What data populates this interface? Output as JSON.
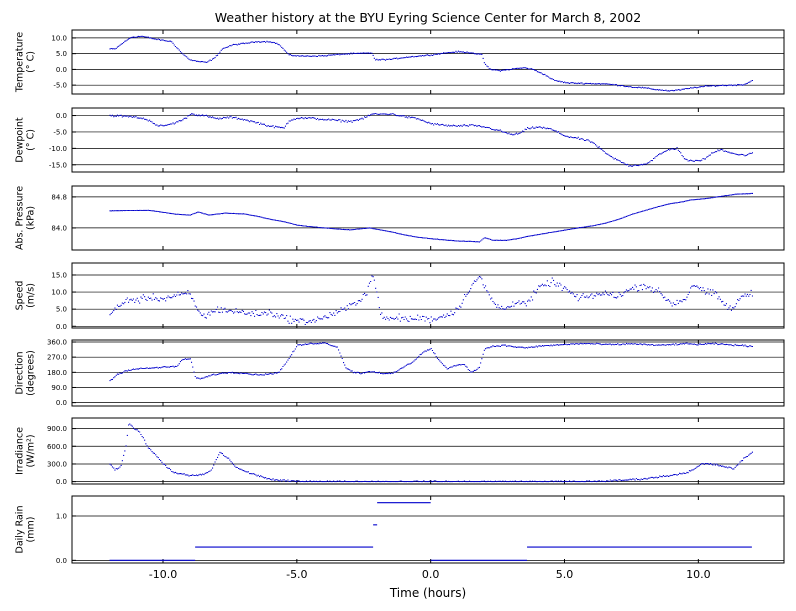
{
  "chart_data": {
    "type": "scatter",
    "title": "Weather history at the BYU Eyring Science Center for March 8, 2002",
    "xlabel": "Time (hours)",
    "xlim": [
      -13.4,
      13.2
    ],
    "x_ticks": [
      -10,
      -5,
      0,
      5,
      10
    ],
    "x_tick_labels": [
      "-10.0",
      "-5.0",
      "0.0",
      "5.0",
      "10.0"
    ],
    "series_color": "#0000cc",
    "panels": [
      {
        "id": "temperature",
        "ylabel": [
          "Temperature",
          "(° C)"
        ],
        "ylim": [
          -7.8,
          12.5
        ],
        "yticks": [
          10,
          5,
          0,
          -5
        ],
        "ytick_labels": [
          "10.0",
          "5.0",
          "0.0",
          "-5.0"
        ],
        "noise": 0.3,
        "x": [
          -12,
          -11.8,
          -11.5,
          -11.2,
          -10.8,
          -10.3,
          -9.7,
          -9.3,
          -9.0,
          -8.7,
          -8.4,
          -8.1,
          -7.8,
          -7.4,
          -7.0,
          -6.5,
          -6.0,
          -5.7,
          -5.3,
          -4.8,
          -4.0,
          -3.4,
          -2.9,
          -2.2,
          -2.1,
          -1.5,
          -1.0,
          -0.5,
          0.0,
          0.5,
          1.0,
          1.5,
          1.9,
          2.0,
          2.2,
          2.6,
          3.2,
          3.5,
          3.8,
          4.2,
          4.6,
          5.1,
          5.6,
          6.0,
          6.5,
          7.0,
          7.5,
          8.0,
          8.4,
          8.9,
          9.3,
          9.8,
          10.3,
          10.8,
          11.3,
          11.7,
          12.0
        ],
        "y": [
          6.5,
          6.5,
          8.5,
          10.2,
          10.5,
          9.6,
          8.8,
          5.0,
          3.0,
          2.5,
          2.2,
          3.5,
          6.5,
          7.8,
          8.2,
          8.8,
          8.8,
          8.0,
          4.5,
          4.2,
          4.3,
          4.8,
          5.0,
          5.2,
          3.0,
          3.2,
          3.8,
          4.2,
          4.6,
          5.2,
          5.6,
          5.3,
          4.6,
          1.8,
          0.0,
          -0.4,
          0.3,
          0.5,
          0.0,
          -1.5,
          -3.5,
          -4.3,
          -4.4,
          -4.5,
          -4.6,
          -5.0,
          -5.6,
          -5.9,
          -6.4,
          -6.8,
          -6.5,
          -5.8,
          -5.3,
          -5.1,
          -5.0,
          -4.8,
          -3.5
        ]
      },
      {
        "id": "dewpoint",
        "ylabel": [
          "Dewpoint",
          "(° C)"
        ],
        "ylim": [
          -17.2,
          2.3
        ],
        "yticks": [
          0,
          -5,
          -10,
          -15
        ],
        "ytick_labels": [
          "0.0",
          "-5.0",
          "-10.0",
          "-15.0"
        ],
        "noise": 0.5,
        "x": [
          -12,
          -11.5,
          -11,
          -10.5,
          -10.2,
          -9.8,
          -9.5,
          -9.2,
          -9.0,
          -8.5,
          -8.0,
          -7.5,
          -7.0,
          -6.5,
          -6.0,
          -5.5,
          -5.3,
          -5.0,
          -4.5,
          -4.0,
          -3.5,
          -3.0,
          -2.5,
          -2.2,
          -2.0,
          -1.5,
          -1.0,
          -0.5,
          0.0,
          0.5,
          1.0,
          1.5,
          2.0,
          2.5,
          3.0,
          3.3,
          3.6,
          4.0,
          4.5,
          5.0,
          5.5,
          6.0,
          6.3,
          6.6,
          7.0,
          7.4,
          7.8,
          8.1,
          8.5,
          8.9,
          9.2,
          9.5,
          9.8,
          10.2,
          10.5,
          10.8,
          11.2,
          11.5,
          11.8,
          12.0
        ],
        "y": [
          0.0,
          -0.2,
          -0.5,
          -1.5,
          -3.3,
          -2.8,
          -2.0,
          -1.0,
          0.5,
          0.0,
          -1.0,
          -0.5,
          -1.2,
          -2.2,
          -3.3,
          -3.8,
          -1.5,
          -0.8,
          -0.8,
          -1.2,
          -1.5,
          -1.8,
          -0.8,
          0.5,
          0.4,
          0.5,
          -0.3,
          -1.0,
          -2.5,
          -3.0,
          -3.2,
          -3.0,
          -3.5,
          -4.5,
          -5.8,
          -5.5,
          -4.0,
          -3.5,
          -4.2,
          -6.2,
          -7.0,
          -8.0,
          -10.0,
          -12.0,
          -13.8,
          -15.3,
          -15.0,
          -14.5,
          -12.0,
          -10.3,
          -10.0,
          -13.5,
          -14.0,
          -13.3,
          -11.5,
          -10.3,
          -11.3,
          -12.0,
          -12.0,
          -11.5
        ]
      },
      {
        "id": "pressure",
        "ylabel": [
          "Abs. Pressure",
          "(kPa)"
        ],
        "ylim": [
          83.43,
          85.08
        ],
        "yticks": [
          84.8,
          84.0
        ],
        "ytick_labels": [
          "84.8",
          "84.0"
        ],
        "noise": 0.006,
        "x": [
          -12,
          -11.2,
          -10.5,
          -10.0,
          -9.5,
          -9.0,
          -8.7,
          -8.3,
          -7.7,
          -7.0,
          -6.5,
          -6.0,
          -5.5,
          -5.0,
          -4.5,
          -4.0,
          -3.5,
          -3.0,
          -2.3,
          -2.0,
          -1.5,
          -1.0,
          -0.5,
          0.0,
          0.5,
          1.0,
          1.5,
          1.8,
          2.0,
          2.3,
          2.8,
          3.2,
          3.6,
          4.2,
          4.8,
          5.5,
          6.0,
          6.5,
          7.0,
          7.5,
          8.0,
          8.5,
          8.9,
          9.3,
          9.7,
          10.2,
          10.6,
          11.0,
          11.4,
          11.8,
          12.0
        ],
        "y": [
          84.44,
          84.45,
          84.45,
          84.4,
          84.35,
          84.33,
          84.41,
          84.33,
          84.38,
          84.36,
          84.3,
          84.22,
          84.16,
          84.07,
          84.03,
          84.0,
          83.97,
          83.95,
          84.0,
          83.96,
          83.9,
          83.82,
          83.76,
          83.72,
          83.69,
          83.66,
          83.65,
          83.64,
          83.75,
          83.68,
          83.68,
          83.72,
          83.78,
          83.85,
          83.92,
          84.0,
          84.05,
          84.12,
          84.22,
          84.35,
          84.45,
          84.55,
          84.62,
          84.66,
          84.72,
          84.75,
          84.79,
          84.83,
          84.87,
          84.88,
          84.89
        ]
      },
      {
        "id": "speed",
        "ylabel": [
          "Speed",
          "(m/s)"
        ],
        "ylim": [
          -0.5,
          18.5
        ],
        "yticks": [
          15,
          10,
          5,
          0
        ],
        "ytick_labels": [
          "15.0",
          "10.0",
          "5.0",
          "0.0"
        ],
        "noise": 1.7,
        "x": [
          -12,
          -11.7,
          -11.3,
          -11.0,
          -10.5,
          -10.0,
          -9.5,
          -9.0,
          -8.7,
          -8.4,
          -8.0,
          -7.5,
          -7.0,
          -6.5,
          -6.0,
          -5.5,
          -5.0,
          -4.6,
          -4.2,
          -3.7,
          -3.2,
          -2.8,
          -2.4,
          -2.2,
          -2.0,
          -1.9,
          -1.6,
          -1.2,
          -0.8,
          -0.4,
          0.0,
          0.5,
          1.0,
          1.5,
          1.8,
          2.1,
          2.4,
          2.8,
          3.2,
          3.6,
          4.0,
          4.5,
          5.0,
          5.5,
          6.0,
          6.5,
          7.0,
          7.5,
          8.0,
          8.5,
          9.0,
          9.5,
          9.8,
          10.2,
          10.6,
          11.0,
          11.3,
          11.6,
          12.0
        ],
        "y": [
          3.5,
          5.5,
          8.0,
          7.5,
          8.5,
          8.0,
          9.0,
          9.5,
          4.0,
          3.0,
          5.0,
          4.5,
          4.0,
          3.5,
          4.0,
          2.5,
          1.5,
          1.5,
          2.0,
          3.5,
          5.0,
          7.0,
          10.0,
          15.0,
          10.0,
          3.0,
          2.0,
          2.5,
          2.0,
          2.5,
          2.0,
          3.0,
          5.0,
          12.0,
          14.5,
          10.0,
          6.0,
          5.0,
          7.5,
          6.5,
          11.0,
          13.0,
          11.0,
          8.0,
          9.0,
          9.5,
          9.0,
          11.0,
          12.0,
          10.0,
          6.5,
          8.0,
          12.5,
          10.0,
          9.5,
          6.0,
          5.0,
          9.0,
          9.5
        ]
      },
      {
        "id": "direction",
        "ylabel": [
          "Direction",
          "(degrees)"
        ],
        "ylim": [
          -20,
          372
        ],
        "yticks": [
          360,
          270,
          180,
          90,
          0
        ],
        "ytick_labels": [
          "360.0",
          "270.0",
          "180.0",
          "90.0",
          "0.0"
        ],
        "noise": 7,
        "x": [
          -12,
          -11.7,
          -11.4,
          -11.0,
          -10.5,
          -10.0,
          -9.5,
          -9.3,
          -9.0,
          -8.8,
          -8.6,
          -8.3,
          -8.0,
          -7.5,
          -7.0,
          -6.5,
          -6.0,
          -5.7,
          -5.4,
          -5.0,
          -4.5,
          -4.0,
          -3.5,
          -3.2,
          -2.9,
          -2.6,
          -2.3,
          -2.0,
          -1.7,
          -1.4,
          -1.1,
          -0.7,
          -0.3,
          0.0,
          0.3,
          0.6,
          0.9,
          1.2,
          1.5,
          1.8,
          2.0,
          2.3,
          2.7,
          3.2,
          3.6,
          4.0,
          4.5,
          5.0,
          5.5,
          6.0,
          6.5,
          7.0,
          7.5,
          8.0,
          8.5,
          9.0,
          9.5,
          10.0,
          10.5,
          11.0,
          11.5,
          12.0
        ],
        "y": [
          130,
          170,
          190,
          200,
          205,
          210,
          215,
          255,
          260,
          150,
          140,
          160,
          170,
          180,
          175,
          165,
          170,
          180,
          240,
          340,
          350,
          355,
          330,
          210,
          180,
          175,
          185,
          180,
          170,
          175,
          205,
          240,
          300,
          320,
          250,
          200,
          220,
          230,
          180,
          210,
          320,
          335,
          340,
          330,
          325,
          335,
          340,
          345,
          350,
          350,
          345,
          345,
          350,
          345,
          340,
          345,
          350,
          345,
          350,
          345,
          340,
          335
        ]
      },
      {
        "id": "irradiance",
        "ylabel": [
          "Irradiance",
          "(W/m²)"
        ],
        "ylim": [
          -40,
          1080
        ],
        "yticks": [
          900,
          600,
          300,
          0
        ],
        "ytick_labels": [
          "900.0",
          "600.0",
          "300.0",
          "0.0"
        ],
        "noise": 25,
        "x": [
          -12,
          -11.8,
          -11.6,
          -11.4,
          -11.3,
          -11.1,
          -10.9,
          -10.6,
          -10.3,
          -10.0,
          -9.6,
          -9.0,
          -8.5,
          -8.2,
          -7.9,
          -7.6,
          -7.3,
          -7.0,
          -6.6,
          -6.3,
          -6.0,
          -5.7,
          -5.0,
          -3.0,
          -1.0,
          0.0,
          2.0,
          4.0,
          5.5,
          6.5,
          7.0,
          7.5,
          8.0,
          8.5,
          9.0,
          9.5,
          9.8,
          10.1,
          10.4,
          10.7,
          11.0,
          11.3,
          11.5,
          11.7,
          12.0
        ],
        "y": [
          300,
          200,
          260,
          600,
          1000,
          900,
          850,
          600,
          450,
          300,
          150,
          100,
          120,
          200,
          500,
          400,
          250,
          180,
          120,
          80,
          40,
          20,
          5,
          0,
          0,
          0,
          0,
          0,
          0,
          10,
          20,
          35,
          50,
          80,
          110,
          150,
          200,
          300,
          300,
          280,
          250,
          220,
          300,
          400,
          500
        ]
      },
      {
        "id": "rain",
        "type": "step",
        "ylabel": [
          "Daily Rain",
          "(mm)"
        ],
        "ylim": [
          -0.06,
          1.45
        ],
        "yticks": [
          1.0,
          0.0
        ],
        "ytick_labels": [
          "1.0",
          "0.0"
        ],
        "segments": [
          {
            "x0": -12.0,
            "x1": -8.8,
            "y": 0.0
          },
          {
            "x0": -8.8,
            "x1": -2.15,
            "y": 0.3
          },
          {
            "x0": -2.15,
            "x1": -2.0,
            "y": 0.8
          },
          {
            "x0": -2.0,
            "x1": 0.0,
            "y": 1.3
          },
          {
            "x0": 0.0,
            "x1": 3.6,
            "y": 0.0
          },
          {
            "x0": 3.6,
            "x1": 12.0,
            "y": 0.3
          }
        ]
      }
    ]
  }
}
